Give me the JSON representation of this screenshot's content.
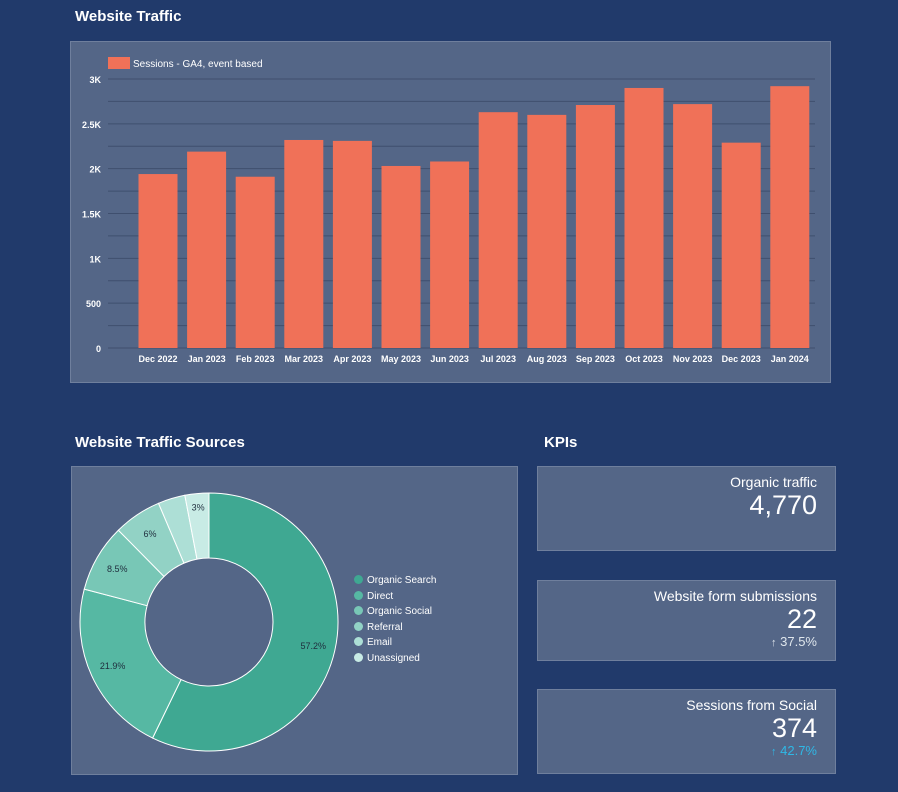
{
  "traffic": {
    "title": "Website Traffic",
    "legend_label": "Sessions - GA4, event based",
    "bar_color": "#f07158"
  },
  "sources": {
    "title": "Website Traffic Sources",
    "legend": [
      {
        "label": "Organic Search",
        "color": "#3fa892"
      },
      {
        "label": "Direct",
        "color": "#56b8a3"
      },
      {
        "label": "Organic Social",
        "color": "#78c7b6"
      },
      {
        "label": "Referral",
        "color": "#92d2c5"
      },
      {
        "label": "Email",
        "color": "#addfd6"
      },
      {
        "label": "Unassigned",
        "color": "#c8ebe5"
      }
    ]
  },
  "kpis": {
    "title": "KPIs",
    "cards": [
      {
        "label": "Organic traffic",
        "value": "4,770",
        "delta": ""
      },
      {
        "label": "Website form submissions",
        "value": "22",
        "delta": "37.5%",
        "delta_color": "#dfe6ec",
        "arrow": "↑"
      },
      {
        "label": "Sessions from Social",
        "value": "374",
        "delta": "42.7%",
        "delta_color": "#2fb8e6",
        "arrow": "↑"
      }
    ]
  },
  "chart_data": [
    {
      "type": "bar",
      "title": "Website Traffic",
      "categories": [
        "Dec 2022",
        "Jan 2023",
        "Feb 2023",
        "Mar 2023",
        "Apr 2023",
        "May 2023",
        "Jun 2023",
        "Jul 2023",
        "Aug 2023",
        "Sep 2023",
        "Oct 2023",
        "Nov 2023",
        "Dec 2023",
        "Jan 2024"
      ],
      "series": [
        {
          "name": "Sessions - GA4, event based",
          "values": [
            1940,
            2190,
            1910,
            2320,
            2310,
            2030,
            2080,
            2630,
            2600,
            2710,
            2900,
            2720,
            2290,
            2920
          ]
        }
      ],
      "ylim": [
        0,
        3000
      ],
      "yticks": [
        0,
        500,
        1000,
        1500,
        2000,
        2500,
        3000
      ],
      "ytick_labels": [
        "0",
        "500",
        "1K",
        "1.5K",
        "2K",
        "2.5K",
        "3K"
      ],
      "grid": true,
      "legend_position": "top-left"
    },
    {
      "type": "pie",
      "donut": true,
      "labels": [
        "Organic Search",
        "Direct",
        "Organic Social",
        "Referral",
        "Email",
        "Unassigned"
      ],
      "values": [
        57.2,
        21.9,
        8.5,
        6,
        3.4,
        3
      ],
      "value_labels": [
        "57.2%",
        "21.9%",
        "8.5%",
        "6%",
        "",
        "3%"
      ],
      "colors": [
        "#3fa892",
        "#56b8a3",
        "#78c7b6",
        "#92d2c5",
        "#addfd6",
        "#c8ebe5"
      ],
      "legend_position": "right"
    }
  ]
}
